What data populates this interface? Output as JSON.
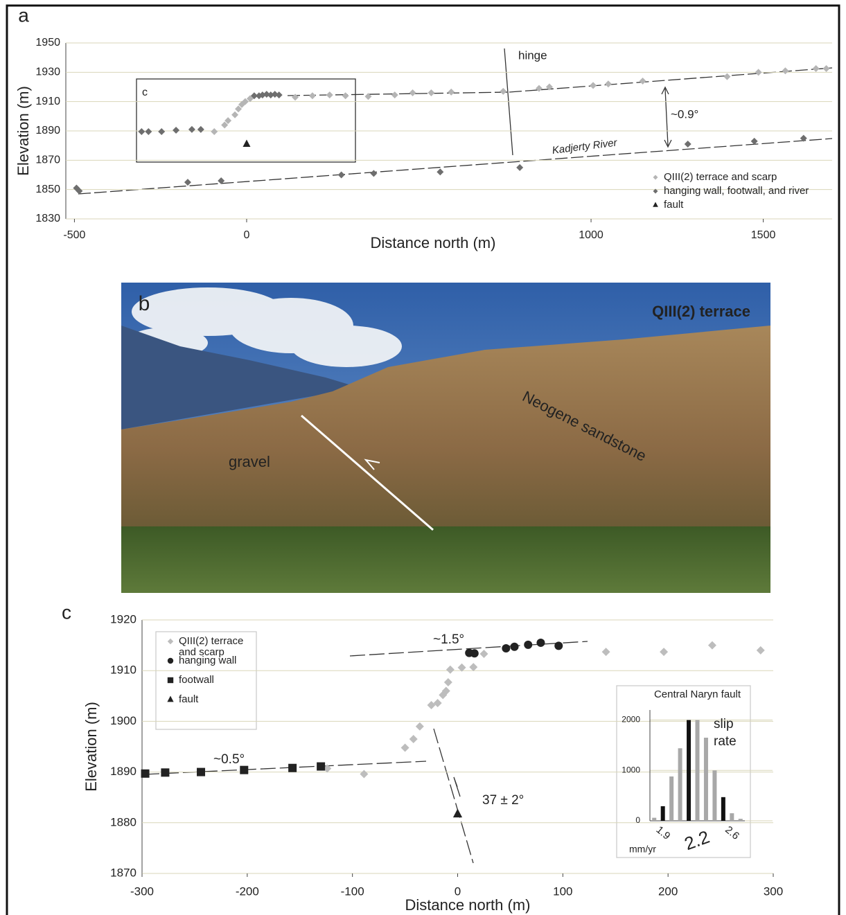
{
  "chart_data": [
    {
      "type": "scatter",
      "panel_label": "a",
      "x_label": "Distance north (m)",
      "y_label": "Elevation (m)",
      "xlim": [
        -525,
        1700
      ],
      "xticks": [
        -500,
        0,
        1000,
        1500
      ],
      "ylim": [
        1830,
        1950
      ],
      "yticks": [
        1830,
        1850,
        1870,
        1890,
        1910,
        1930,
        1950
      ],
      "grid": true,
      "legend": "lower right",
      "series": [
        {
          "name": "QIII(2) terrace and scarp",
          "color": "#b5b5b5",
          "marker": "diamond",
          "x": [
            -94,
            -64,
            -54,
            -34,
            -24,
            -14,
            -4,
            10,
            141,
            191,
            241,
            287,
            353,
            430,
            482,
            536,
            594,
            745,
            849,
            879,
            1006,
            1050,
            1150,
            1395,
            1486,
            1564,
            1653,
            1683
          ],
          "values": [
            1889.5,
            1894,
            1897,
            1901,
            1905,
            1908,
            1910,
            1912,
            1913,
            1914,
            1914.5,
            1914,
            1913.5,
            1914.5,
            1916,
            1916,
            1916.5,
            1917,
            1919,
            1920,
            1921,
            1922,
            1924,
            1927,
            1930,
            1931,
            1932.5,
            1932.5
          ]
        },
        {
          "name": "hanging wall, footwall, and river",
          "color": "#6e6e6e",
          "marker": "diamond",
          "x": [
            -305,
            -285,
            -247,
            -205,
            -159,
            -133,
            22,
            36,
            46,
            58,
            70,
            82,
            94,
            -494,
            -486,
            -171,
            -74,
            275,
            369,
            562,
            793,
            1281,
            1474,
            1617
          ],
          "values": [
            1889.5,
            1889.5,
            1889.5,
            1890.5,
            1891,
            1891,
            1914,
            1914,
            1914.5,
            1915,
            1914.5,
            1915,
            1914.5,
            1851,
            1849,
            1855,
            1856,
            1860,
            1861,
            1862,
            1865,
            1881,
            1883,
            1885
          ]
        },
        {
          "name": "fault",
          "color": "#222222",
          "marker": "triangle",
          "x": [
            0
          ],
          "values": [
            1881
          ]
        }
      ],
      "annotations": [
        "hinge",
        "~0.9°",
        "Kadjerty River",
        "c"
      ]
    },
    {
      "type": "scatter",
      "panel_label": "c",
      "x_label": "Distance north (m)",
      "y_label": "Elevation (m)",
      "xlim": [
        -300,
        300
      ],
      "xticks": [
        -300,
        -200,
        -100,
        0,
        100,
        200,
        300
      ],
      "ylim": [
        1870,
        1920
      ],
      "yticks": [
        1870,
        1880,
        1890,
        1900,
        1910,
        1920
      ],
      "grid": true,
      "legend": "upper left",
      "series": [
        {
          "name": "QIII(2) terrace and scarp",
          "color": "#bdbdbd",
          "marker": "diamond",
          "x": [
            -124,
            -89,
            -50,
            -42,
            -36,
            -25,
            -19,
            -14,
            -11,
            -9,
            -7,
            4,
            15,
            25,
            141,
            196,
            242,
            288
          ],
          "values": [
            1890.7,
            1889.6,
            1894.8,
            1896.5,
            1899,
            1903.2,
            1903.6,
            1905.2,
            1906,
            1907.7,
            1910.2,
            1910.6,
            1910.7,
            1913.3,
            1913.7,
            1913.7,
            1915,
            1914
          ]
        },
        {
          "name": "hanging wall",
          "color": "#222222",
          "marker": "circle",
          "x": [
            11,
            16,
            46,
            54,
            67,
            79,
            96
          ],
          "values": [
            1913.5,
            1913.4,
            1914.4,
            1914.7,
            1915.1,
            1915.5,
            1914.9
          ]
        },
        {
          "name": "footwall",
          "color": "#222222",
          "marker": "square",
          "x": [
            -297,
            -278,
            -244,
            -203,
            -157,
            -130
          ],
          "values": [
            1889.7,
            1889.9,
            1890,
            1890.4,
            1890.8,
            1891.1
          ]
        },
        {
          "name": "fault",
          "color": "#222222",
          "marker": "triangle",
          "x": [
            0
          ],
          "values": [
            1881.7
          ]
        }
      ],
      "annotations": [
        "~1.5°",
        "~0.5°",
        "37 ± 2°"
      ]
    },
    {
      "type": "bar",
      "title": "Central Naryn fault",
      "annotation": "slip rate",
      "x_label": "mm/yr",
      "categories": [
        null,
        "1.9",
        null,
        null,
        null,
        "2.2",
        null,
        null,
        null,
        "2.6",
        null
      ],
      "ylim": [
        0,
        2200
      ],
      "yticks": [
        0,
        1000,
        2000
      ],
      "grid": true,
      "series": [
        {
          "color": "#111111",
          "values": [
            null,
            290,
            null,
            null,
            2000,
            null,
            null,
            null,
            470,
            null,
            null
          ]
        },
        {
          "color": "#a8a8a8",
          "values": [
            60,
            null,
            880,
            1440,
            null,
            2000,
            1650,
            1000,
            null,
            150,
            40
          ]
        }
      ]
    }
  ],
  "photo": {
    "panel_label": "b",
    "title": "QIII(2) terrace",
    "labels": [
      "gravel",
      "Neogene sandstone"
    ]
  }
}
